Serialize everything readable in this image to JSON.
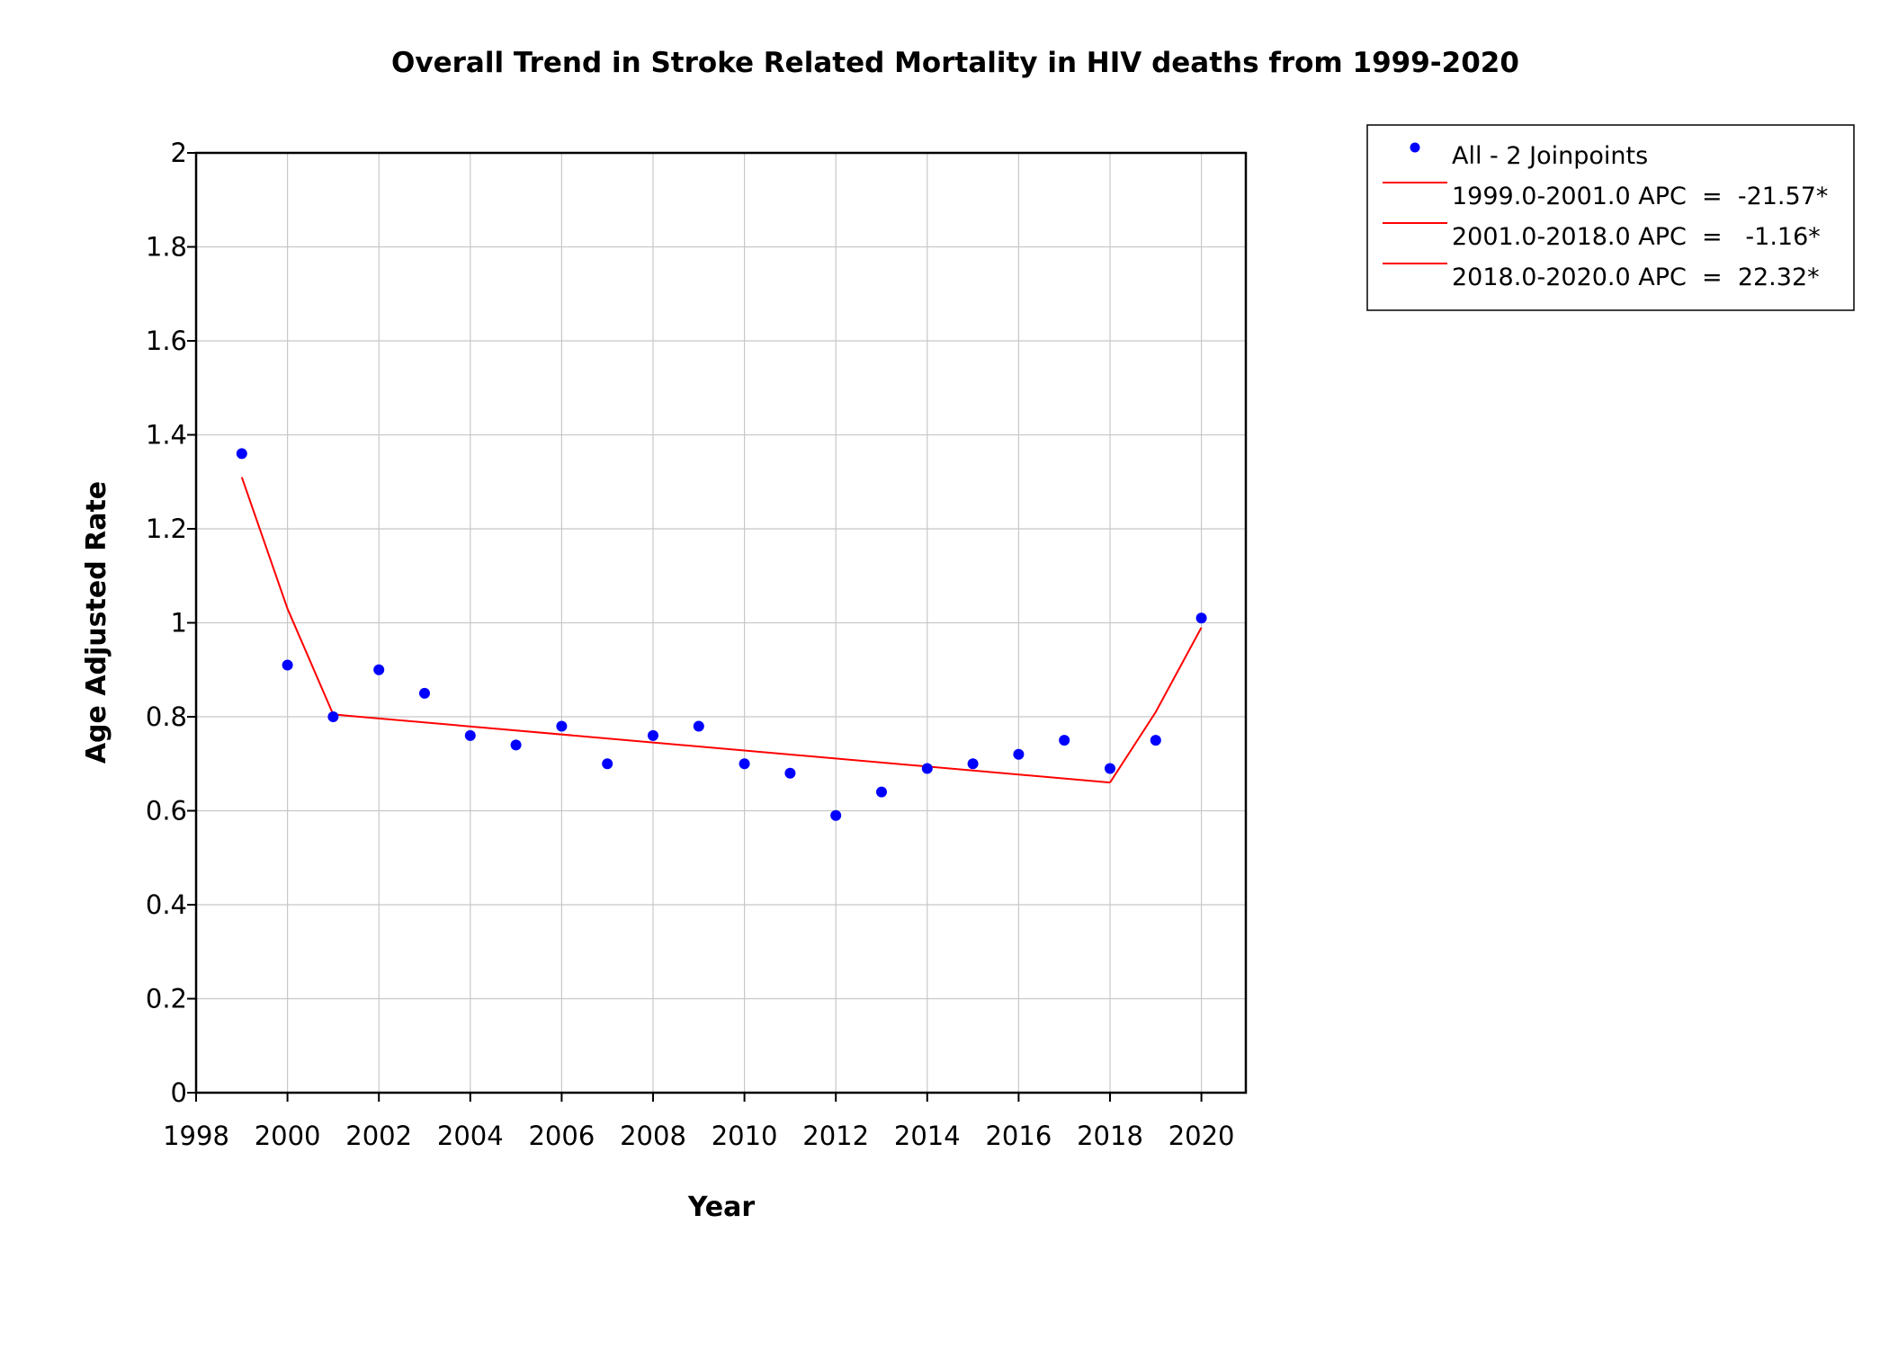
{
  "chart_data": {
    "type": "scatter",
    "title": "Overall Trend in Stroke Related Mortality in HIV deaths from 1999-2020",
    "xlabel": "Year",
    "ylabel": "Age Adjusted Rate",
    "xlim": [
      1998,
      2021
    ],
    "ylim": [
      0,
      2
    ],
    "xticks": [
      1998,
      2000,
      2002,
      2004,
      2006,
      2008,
      2010,
      2012,
      2014,
      2016,
      2018,
      2020
    ],
    "yticks": [
      0,
      0.2,
      0.4,
      0.6,
      0.8,
      1,
      1.2,
      1.4,
      1.6,
      1.8,
      2
    ],
    "grid": true,
    "legend_position": "top-right-outside",
    "points": {
      "name": "All - 2 Joinpoints",
      "color": "#0000ff",
      "x": [
        1999,
        2000,
        2001,
        2002,
        2003,
        2004,
        2005,
        2006,
        2007,
        2008,
        2009,
        2010,
        2011,
        2012,
        2013,
        2014,
        2015,
        2016,
        2017,
        2018,
        2019,
        2020
      ],
      "y": [
        1.36,
        0.91,
        0.8,
        0.9,
        0.85,
        0.76,
        0.74,
        0.78,
        0.7,
        0.76,
        0.78,
        0.7,
        0.68,
        0.59,
        0.64,
        0.69,
        0.7,
        0.72,
        0.75,
        0.69,
        0.75,
        1.01
      ]
    },
    "segments": [
      {
        "label": "1999.0-2001.0 APC",
        "apc": "-21.57*",
        "color": "#ff0000",
        "x": [
          1999,
          2000,
          2001
        ],
        "y": [
          1.31,
          1.03,
          0.805
        ]
      },
      {
        "label": "2001.0-2018.0 APC",
        "apc": "-1.16*",
        "color": "#ff0000",
        "x": [
          2001,
          2018
        ],
        "y": [
          0.805,
          0.66
        ]
      },
      {
        "label": "2018.0-2020.0 APC",
        "apc": "22.32*",
        "color": "#ff0000",
        "x": [
          2018,
          2019,
          2020
        ],
        "y": [
          0.66,
          0.81,
          0.99
        ]
      }
    ],
    "legend": {
      "items": [
        {
          "text": "All - 2 Joinpoints",
          "kind": "marker"
        },
        {
          "text": "1999.0-2001.0 APC  =  -21.57*",
          "kind": "line"
        },
        {
          "text": "2001.0-2018.0 APC  =   -1.16*",
          "kind": "line"
        },
        {
          "text": "2018.0-2020.0 APC  =  22.32*",
          "kind": "line"
        }
      ]
    }
  }
}
